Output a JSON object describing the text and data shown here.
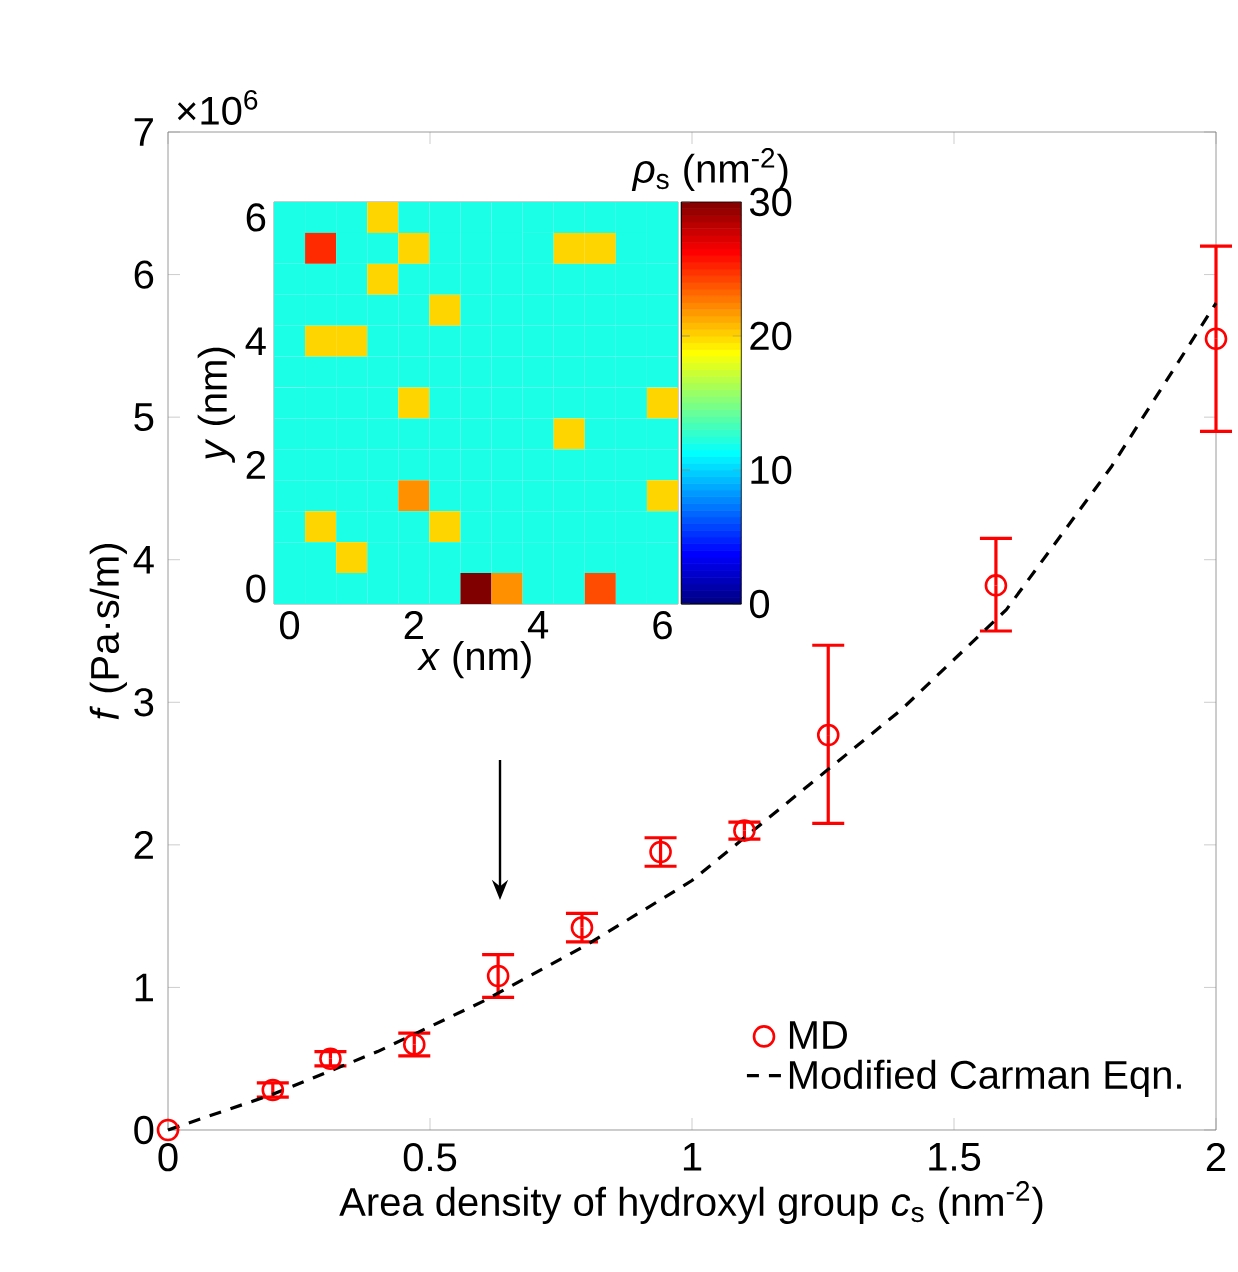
{
  "chart_data": [
    {
      "type": "scatter",
      "xlabel": "Area density of hydroxyl group *c*$_{s}$ (nm$^{-2}$)",
      "ylabel": "*f* (Pa·s/m)",
      "annotations": [
        "×10$^{6}$"
      ],
      "xlim": [
        0,
        2
      ],
      "xticks": [
        0,
        0.5,
        1,
        1.5,
        2
      ],
      "ylim": [
        0,
        7
      ],
      "yticks": [
        0,
        1,
        2,
        3,
        4,
        5,
        6,
        7
      ],
      "legend": "bottom right",
      "series": [
        {
          "name": "MD",
          "type": "scatter",
          "color": "#ff0000",
          "marker": "circle",
          "x": [
            0,
            0.2,
            0.31,
            0.47,
            0.63,
            0.79,
            0.94,
            1.1,
            1.26,
            1.58,
            2.0
          ],
          "values": [
            0,
            0.28,
            0.5,
            0.6,
            1.08,
            1.42,
            1.95,
            2.1,
            2.77,
            3.82,
            5.55
          ],
          "errors": [
            null,
            0.05,
            0.05,
            0.08,
            0.15,
            0.1,
            0.1,
            0.06,
            [
              2.15,
              3.4
            ],
            [
              3.5,
              4.15
            ],
            [
              4.9,
              6.2
            ]
          ]
        },
        {
          "name": "Modified Carman Eqn.",
          "type": "line",
          "color": "#000000",
          "line_style": "dashed",
          "marker": "none",
          "x": [
            0,
            0.2,
            0.4,
            0.6,
            0.8,
            1.0,
            1.2,
            1.4,
            1.6,
            1.8,
            2.0
          ],
          "values": [
            0,
            0.25,
            0.55,
            0.9,
            1.3,
            1.75,
            2.35,
            2.95,
            3.65,
            4.65,
            5.8
          ]
        }
      ]
    },
    {
      "type": "heatmap",
      "xlabel": "*x* (nm)",
      "ylabel": "*y* (nm)",
      "clabel": "*ρ*$_{s}$ (nm$^{-2}$)",
      "clim": [
        0,
        30
      ],
      "cticks": [
        0,
        10,
        20,
        30
      ],
      "categories": [
        "0",
        null,
        null,
        null,
        "2",
        null,
        null,
        null,
        "4",
        null,
        null,
        null,
        "6"
      ],
      "y_categories": [
        "6",
        null,
        null,
        null,
        "4",
        null,
        null,
        null,
        "2",
        null,
        null,
        null,
        "0"
      ],
      "cells": [
        [
          12,
          12,
          12,
          20,
          12,
          12,
          12,
          12,
          12,
          12,
          12,
          12,
          12
        ],
        [
          12,
          25,
          12,
          12,
          20,
          12,
          12,
          12,
          12,
          20,
          20,
          12,
          12
        ],
        [
          12,
          12,
          12,
          20,
          12,
          12,
          12,
          12,
          12,
          12,
          12,
          12,
          12
        ],
        [
          12,
          12,
          12,
          12,
          12,
          20,
          12,
          12,
          12,
          12,
          12,
          12,
          12
        ],
        [
          12,
          20,
          20,
          12,
          12,
          12,
          12,
          12,
          12,
          12,
          12,
          12,
          12
        ],
        [
          12,
          12,
          12,
          12,
          12,
          12,
          12,
          12,
          12,
          12,
          12,
          12,
          12
        ],
        [
          12,
          12,
          12,
          12,
          20,
          12,
          12,
          12,
          12,
          12,
          12,
          12,
          20
        ],
        [
          12,
          12,
          12,
          12,
          12,
          12,
          12,
          12,
          12,
          20,
          12,
          12,
          12
        ],
        [
          12,
          12,
          12,
          12,
          12,
          12,
          12,
          12,
          12,
          12,
          12,
          12,
          12
        ],
        [
          12,
          12,
          12,
          12,
          22,
          12,
          12,
          12,
          12,
          12,
          12,
          12,
          20
        ],
        [
          12,
          20,
          12,
          12,
          12,
          20,
          12,
          12,
          12,
          12,
          12,
          12,
          12
        ],
        [
          12,
          12,
          20,
          12,
          12,
          12,
          12,
          12,
          12,
          12,
          12,
          12,
          12
        ],
        [
          12,
          12,
          12,
          12,
          12,
          12,
          30,
          22,
          12,
          12,
          24,
          12,
          12
        ]
      ]
    }
  ]
}
